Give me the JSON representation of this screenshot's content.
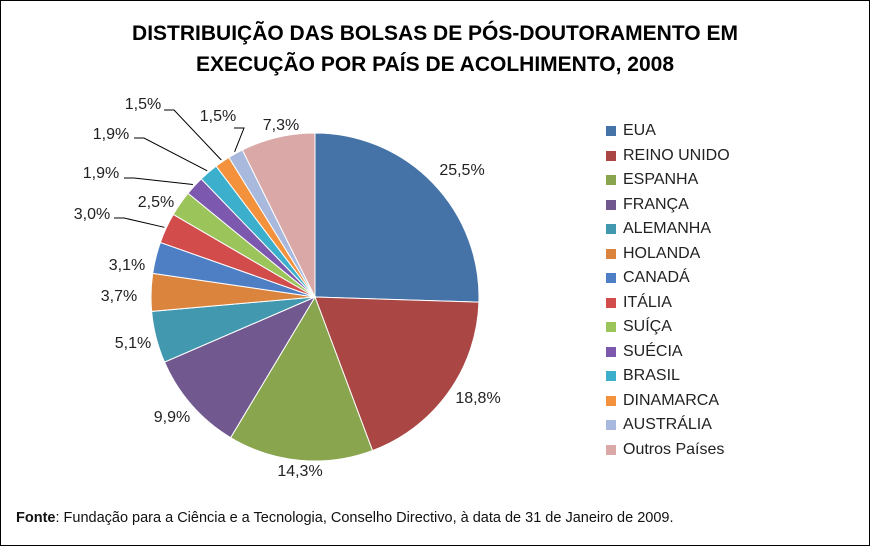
{
  "chart_data": {
    "type": "pie",
    "title": [
      "DISTRIBUIÇÃO DAS BOLSAS DE PÓS-DOUTORAMENTO EM",
      "EXECUÇÃO POR PAÍS DE ACOLHIMENTO, 2008"
    ],
    "legend_position": "right",
    "categories": [
      "EUA",
      "REINO UNIDO",
      "ESPANHA",
      "FRANÇA",
      "ALEMANHA",
      "HOLANDA",
      "CANADÁ",
      "ITÁLIA",
      "SUÍÇA",
      "SUÉCIA",
      "BRASIL",
      "DINAMARCA",
      "AUSTRÁLIA",
      "Outros Países"
    ],
    "values": [
      25.5,
      18.8,
      14.3,
      9.9,
      5.1,
      3.7,
      3.1,
      3.0,
      2.5,
      1.9,
      1.9,
      1.5,
      1.5,
      7.3
    ],
    "labels": [
      "25,5%",
      "18,8%",
      "14,3%",
      "9,9%",
      "5,1%",
      "3,7%",
      "3,1%",
      "3,0%",
      "2,5%",
      "1,9%",
      "1,9%",
      "1,5%",
      "1,5%",
      "7,3%"
    ],
    "colors": [
      "#4572A7",
      "#AA4643",
      "#89A54E",
      "#71588F",
      "#4198AF",
      "#DB843D",
      "#4E7FC4",
      "#D24C4C",
      "#9BC45A",
      "#7C58AE",
      "#3BAFCB",
      "#F4913D",
      "#A9B9DD",
      "#D9A8A7"
    ]
  },
  "source": {
    "prefix": "Fonte",
    "text": ": Fundação para a Ciência e a Tecnologia, Conselho Directivo, à data de 31 de Janeiro de 2009."
  }
}
